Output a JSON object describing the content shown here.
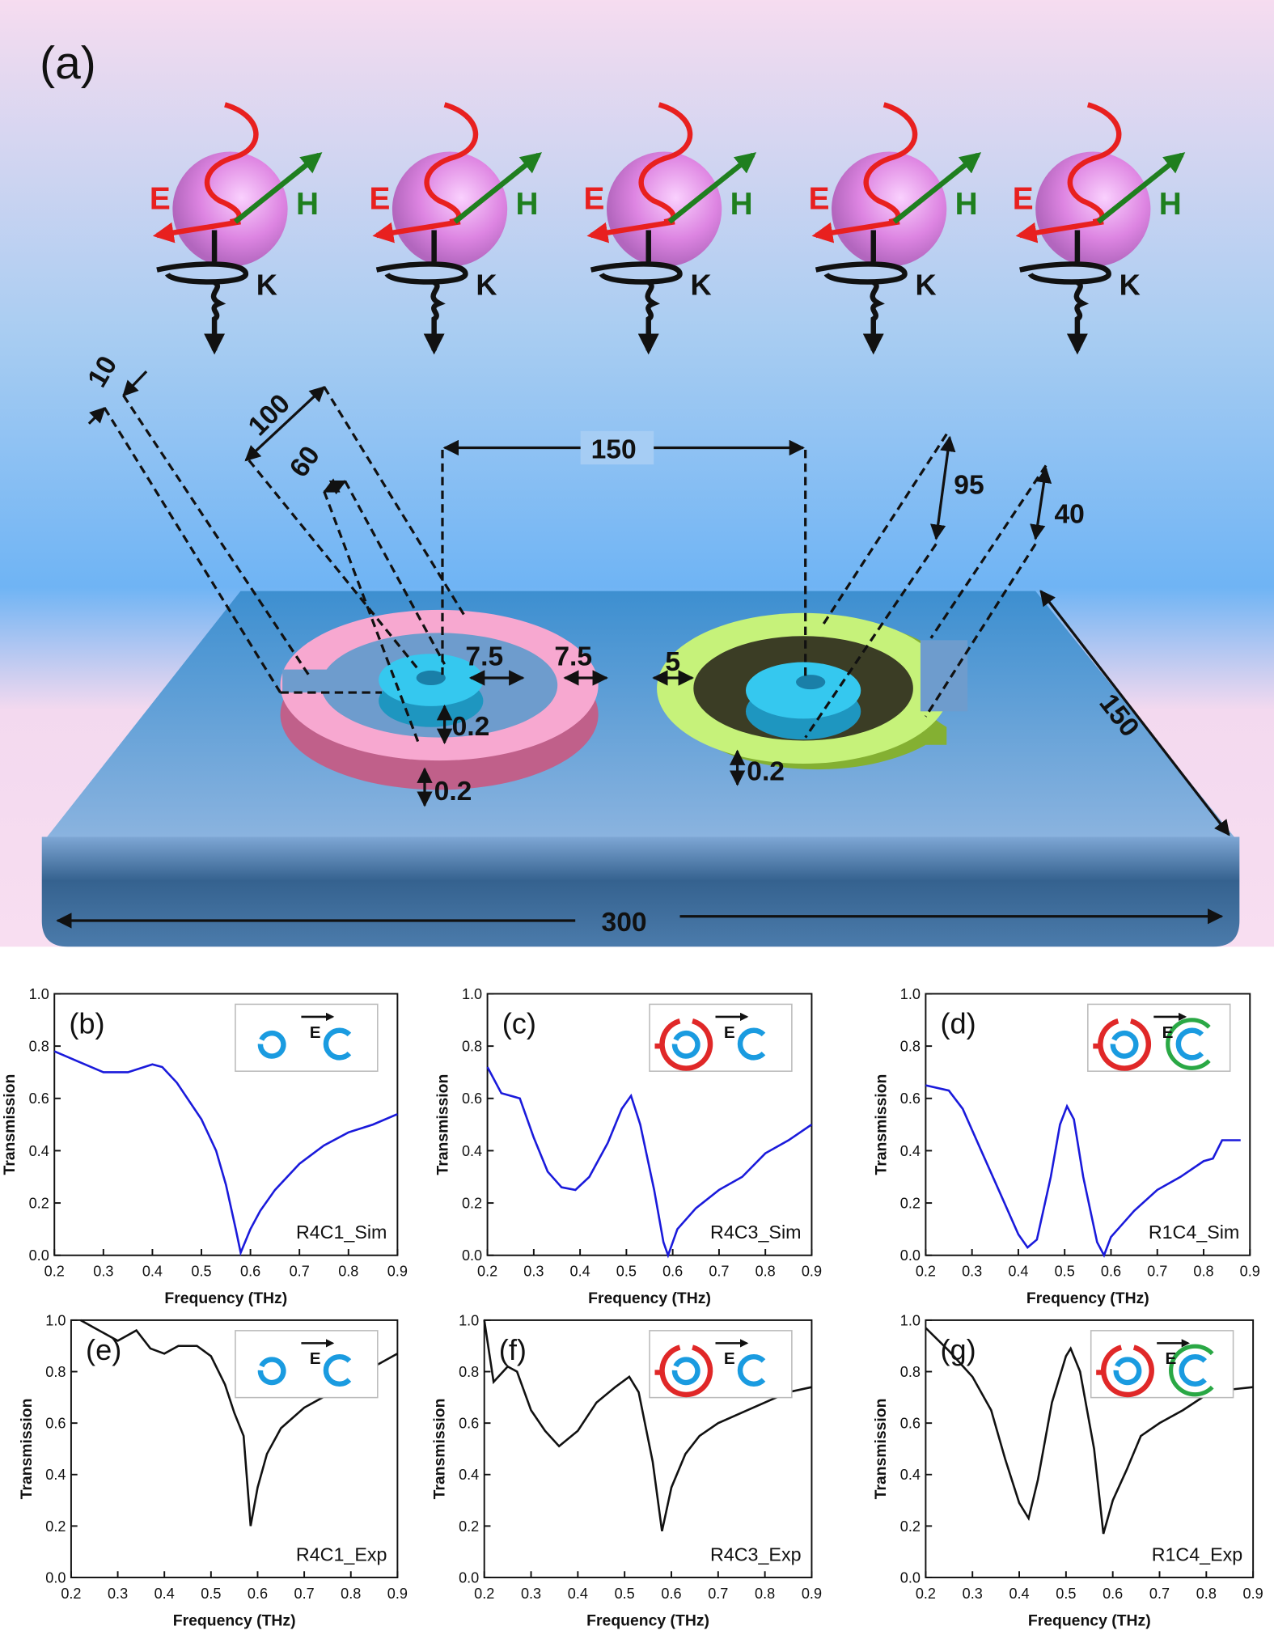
{
  "diagram": {
    "label": "(a)",
    "wave_labels": [
      "E",
      "H",
      "K"
    ],
    "dimensions": [
      "10",
      "100",
      "60",
      "150",
      "95",
      "40",
      "7.5",
      "7.5",
      "5",
      "0.2",
      "0.2",
      "0.2",
      "150",
      "300"
    ]
  },
  "chart_data": [
    {
      "type": "line",
      "panel": "(b)",
      "annotation": "R4C1_Sim",
      "inset_label": "E",
      "xlabel": "Frequency (THz)",
      "ylabel": "Transmission",
      "color": "#1a1adb",
      "x": [
        0.2,
        0.25,
        0.3,
        0.35,
        0.4,
        0.42,
        0.45,
        0.5,
        0.53,
        0.55,
        0.57,
        0.58,
        0.6,
        0.62,
        0.65,
        0.7,
        0.75,
        0.8,
        0.85,
        0.9
      ],
      "values": [
        0.78,
        0.74,
        0.7,
        0.7,
        0.73,
        0.72,
        0.66,
        0.52,
        0.4,
        0.27,
        0.1,
        0.01,
        0.1,
        0.17,
        0.25,
        0.35,
        0.42,
        0.47,
        0.5,
        0.54
      ],
      "xlim": [
        0.2,
        0.9
      ],
      "ylim": [
        0,
        1
      ],
      "xticks": [
        0.2,
        0.3,
        0.4,
        0.5,
        0.6,
        0.7,
        0.8,
        0.9
      ],
      "yticks": [
        {
          "value": 0,
          "label": "0.0"
        },
        0.2,
        0.4,
        0.6,
        0.8,
        {
          "value": 1,
          "label": "1.0"
        }
      ]
    },
    {
      "type": "line",
      "panel": "(c)",
      "annotation": "R4C3_Sim",
      "inset_label": "E",
      "xlabel": "Frequency (THz)",
      "ylabel": "Transmission",
      "color": "#1a1adb",
      "x": [
        0.2,
        0.23,
        0.27,
        0.3,
        0.33,
        0.36,
        0.39,
        0.42,
        0.46,
        0.49,
        0.51,
        0.53,
        0.56,
        0.58,
        0.59,
        0.61,
        0.65,
        0.7,
        0.75,
        0.8,
        0.85,
        0.9
      ],
      "values": [
        0.72,
        0.62,
        0.6,
        0.45,
        0.32,
        0.26,
        0.25,
        0.3,
        0.43,
        0.56,
        0.61,
        0.5,
        0.25,
        0.05,
        0.0,
        0.1,
        0.18,
        0.25,
        0.3,
        0.39,
        0.44,
        0.5
      ],
      "xlim": [
        0.2,
        0.9
      ],
      "ylim": [
        0,
        1
      ],
      "xticks": [
        0.2,
        0.3,
        0.4,
        0.5,
        0.6,
        0.7,
        0.8,
        0.9
      ],
      "yticks": [
        {
          "value": 0,
          "label": "0.0"
        },
        0.2,
        0.4,
        0.6,
        0.8,
        {
          "value": 1,
          "label": "1.0"
        }
      ]
    },
    {
      "type": "line",
      "panel": "(d)",
      "annotation": "R1C4_Sim",
      "inset_label": "E",
      "xlabel": "Frequency (THz)",
      "ylabel": "Transmission",
      "color": "#1a1adb",
      "x": [
        0.2,
        0.25,
        0.28,
        0.32,
        0.36,
        0.4,
        0.42,
        0.44,
        0.47,
        0.49,
        0.505,
        0.52,
        0.54,
        0.57,
        0.585,
        0.6,
        0.62,
        0.65,
        0.7,
        0.75,
        0.8,
        0.82,
        0.84,
        0.88
      ],
      "values": [
        0.65,
        0.63,
        0.56,
        0.4,
        0.24,
        0.08,
        0.03,
        0.06,
        0.3,
        0.5,
        0.57,
        0.52,
        0.3,
        0.05,
        0.0,
        0.07,
        0.11,
        0.17,
        0.25,
        0.3,
        0.36,
        0.37,
        0.44,
        0.44
      ],
      "xlim": [
        0.2,
        0.9
      ],
      "ylim": [
        0,
        1
      ],
      "xticks": [
        0.2,
        0.3,
        0.4,
        0.5,
        0.6,
        0.7,
        0.8,
        0.9
      ],
      "yticks": [
        {
          "value": 0,
          "label": "0.0"
        },
        0.2,
        0.4,
        0.6,
        0.8,
        {
          "value": 1,
          "label": "1.0"
        }
      ]
    },
    {
      "type": "line",
      "panel": "(e)",
      "annotation": "R4C1_Exp",
      "inset_label": "E",
      "xlabel": "Frequency (THz)",
      "ylabel": "Transmission",
      "color": "#111111",
      "x": [
        0.22,
        0.25,
        0.3,
        0.34,
        0.37,
        0.4,
        0.43,
        0.47,
        0.5,
        0.53,
        0.55,
        0.57,
        0.585,
        0.6,
        0.62,
        0.65,
        0.7,
        0.75,
        0.8,
        0.85,
        0.9
      ],
      "values": [
        1.0,
        0.97,
        0.92,
        0.96,
        0.89,
        0.87,
        0.9,
        0.9,
        0.86,
        0.75,
        0.64,
        0.55,
        0.2,
        0.35,
        0.48,
        0.58,
        0.66,
        0.71,
        0.77,
        0.82,
        0.87
      ],
      "xlim": [
        0.2,
        0.9
      ],
      "ylim": [
        0,
        1
      ],
      "xticks": [
        0.2,
        0.3,
        0.4,
        0.5,
        0.6,
        0.7,
        0.8,
        0.9
      ],
      "yticks": [
        {
          "value": 0,
          "label": "0.0"
        },
        0.2,
        0.4,
        0.6,
        0.8,
        {
          "value": 1,
          "label": "1.0"
        }
      ]
    },
    {
      "type": "line",
      "panel": "(f)",
      "annotation": "R4C3_Exp",
      "inset_label": "E",
      "xlabel": "Frequency (THz)",
      "ylabel": "Transmission",
      "color": "#111111",
      "x": [
        0.2,
        0.22,
        0.25,
        0.27,
        0.3,
        0.33,
        0.36,
        0.4,
        0.44,
        0.48,
        0.51,
        0.53,
        0.56,
        0.58,
        0.6,
        0.63,
        0.66,
        0.7,
        0.75,
        0.8,
        0.85,
        0.9
      ],
      "values": [
        1.0,
        0.76,
        0.82,
        0.8,
        0.65,
        0.57,
        0.51,
        0.57,
        0.68,
        0.74,
        0.78,
        0.72,
        0.45,
        0.18,
        0.35,
        0.48,
        0.55,
        0.6,
        0.64,
        0.68,
        0.72,
        0.74
      ],
      "xlim": [
        0.2,
        0.9
      ],
      "ylim": [
        0,
        1
      ],
      "xticks": [
        0.2,
        0.3,
        0.4,
        0.5,
        0.6,
        0.7,
        0.8,
        0.9
      ],
      "yticks": [
        {
          "value": 0,
          "label": "0.0"
        },
        0.2,
        0.4,
        0.6,
        0.8,
        {
          "value": 1,
          "label": "1.0"
        }
      ]
    },
    {
      "type": "line",
      "panel": "(g)",
      "annotation": "R1C4_Exp",
      "inset_label": "E",
      "xlabel": "Frequency (THz)",
      "ylabel": "Transmission",
      "color": "#111111",
      "x": [
        0.2,
        0.25,
        0.3,
        0.34,
        0.37,
        0.4,
        0.42,
        0.44,
        0.47,
        0.5,
        0.51,
        0.53,
        0.56,
        0.58,
        0.6,
        0.63,
        0.66,
        0.7,
        0.75,
        0.8,
        0.85,
        0.9
      ],
      "values": [
        0.97,
        0.88,
        0.78,
        0.65,
        0.46,
        0.29,
        0.23,
        0.38,
        0.68,
        0.86,
        0.89,
        0.8,
        0.5,
        0.17,
        0.3,
        0.42,
        0.55,
        0.6,
        0.65,
        0.71,
        0.73,
        0.74
      ],
      "xlim": [
        0.2,
        0.9
      ],
      "ylim": [
        0,
        1
      ],
      "xticks": [
        0.2,
        0.3,
        0.4,
        0.5,
        0.6,
        0.7,
        0.8,
        0.9
      ],
      "yticks": [
        {
          "value": 0,
          "label": "0.0"
        },
        0.2,
        0.4,
        0.6,
        0.8,
        {
          "value": 1,
          "label": "1.0"
        }
      ]
    }
  ]
}
